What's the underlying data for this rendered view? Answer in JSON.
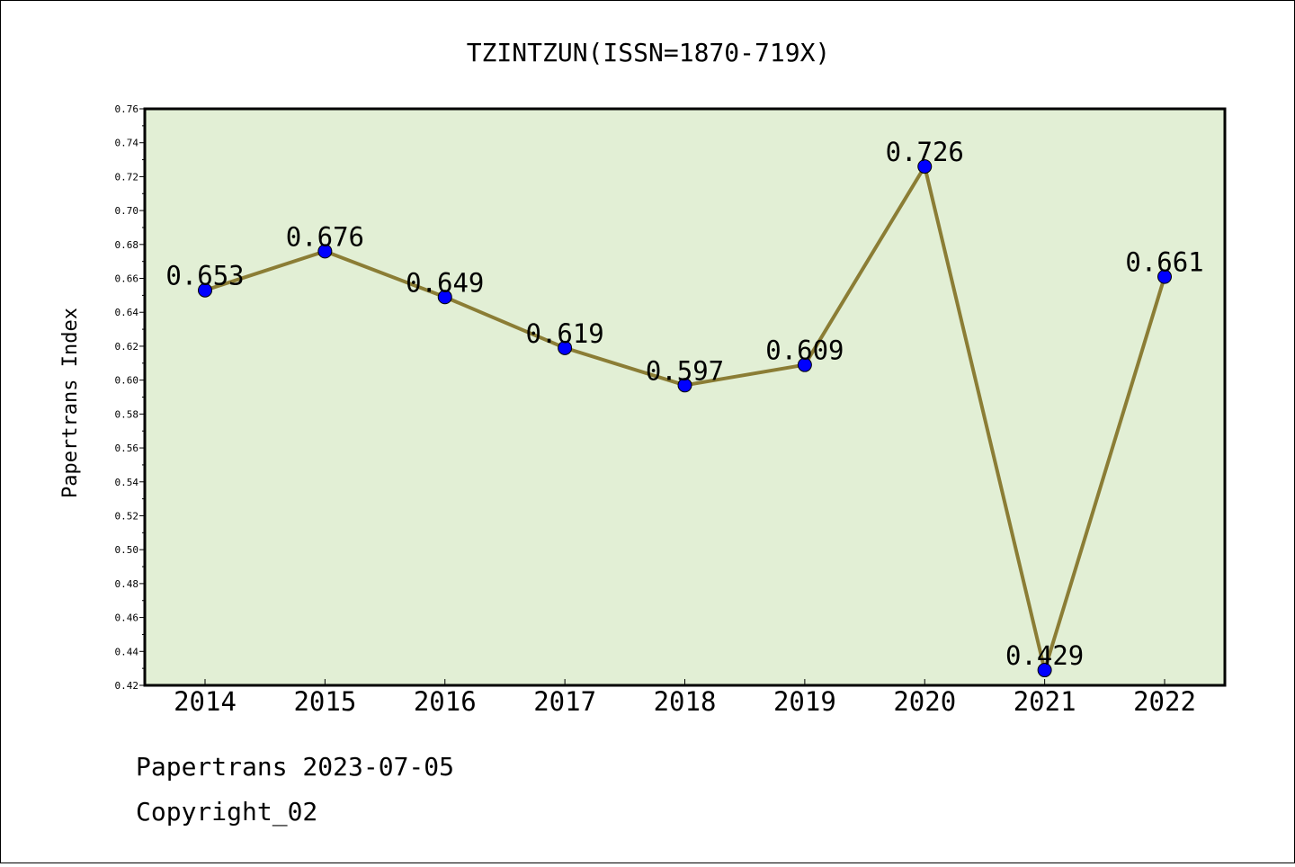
{
  "chart_data": {
    "type": "line",
    "title": "TZINTZUN(ISSN=1870-719X)",
    "ylabel": "Papertrans Index",
    "xlabel": "",
    "categories": [
      "2014",
      "2015",
      "2016",
      "2017",
      "2018",
      "2019",
      "2020",
      "2021",
      "2022"
    ],
    "series": [
      {
        "values": [
          0.653,
          0.676,
          0.649,
          0.619,
          0.597,
          0.609,
          0.726,
          0.429,
          0.661
        ]
      }
    ],
    "data_labels": [
      "0.653",
      "0.676",
      "0.649",
      "0.619",
      "0.597",
      "0.609",
      "0.726",
      "0.429",
      "0.661"
    ],
    "ylim": [
      0.42,
      0.76
    ],
    "yticks": [
      "0.42",
      "0.44",
      "0.46",
      "0.48",
      "0.50",
      "0.52",
      "0.54",
      "0.56",
      "0.58",
      "0.60",
      "0.62",
      "0.64",
      "0.66",
      "0.68",
      "0.70",
      "0.72",
      "0.74",
      "0.76"
    ],
    "grid": false,
    "legend": "none",
    "colors": {
      "plot_bg": "#e2efd5",
      "line": "#8b7d35",
      "marker": "#0000ff"
    }
  },
  "footer": {
    "line1": "Papertrans 2023-07-05",
    "line2": "Copyright_02"
  }
}
